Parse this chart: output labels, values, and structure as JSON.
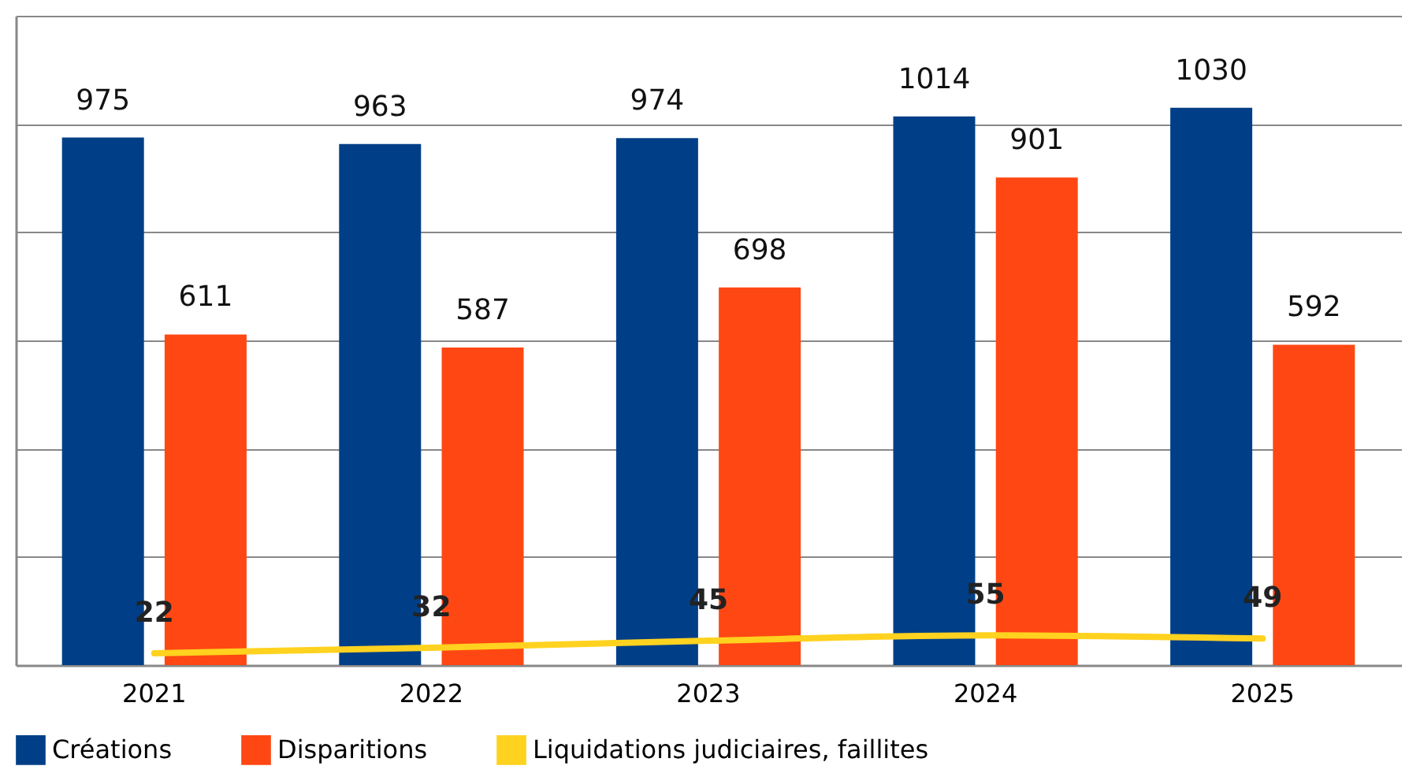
{
  "chart_data": {
    "type": "bar",
    "categories": [
      "2021",
      "2022",
      "2023",
      "2024",
      "2025"
    ],
    "series": [
      {
        "name": "Créations",
        "color": "#003f87",
        "values": [
          975,
          963,
          974,
          1014,
          1030
        ]
      },
      {
        "name": "Disparitions",
        "color": "#ff4713",
        "values": [
          611,
          587,
          698,
          901,
          592
        ]
      },
      {
        "name": "Liquidations judiciaires, faillites",
        "color": "#ffd21f",
        "type": "line",
        "values": [
          22,
          32,
          45,
          55,
          49
        ]
      }
    ],
    "ylim": [
      0,
      1200
    ],
    "yticks": [
      {
        "value": 0,
        "label": null
      },
      {
        "value": 200,
        "label": null
      },
      {
        "value": 400,
        "label": null
      },
      {
        "value": 600,
        "label": null
      },
      {
        "value": 800,
        "label": null
      },
      {
        "value": 1000,
        "label": null
      },
      {
        "value": 1200,
        "label": null
      }
    ],
    "tick_labels": "x",
    "grid": "y",
    "legend": "bottom",
    "data_labels": true,
    "line_style": "solid",
    "marker": "none"
  }
}
